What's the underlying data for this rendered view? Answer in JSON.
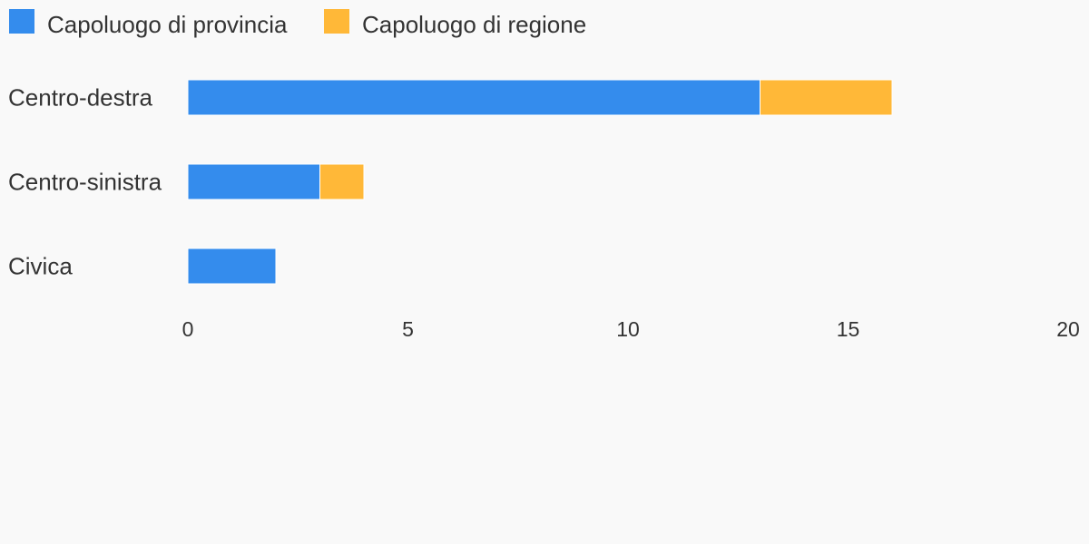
{
  "chart_data": {
    "type": "bar",
    "orientation": "horizontal",
    "stacked": true,
    "categories": [
      "Centro-destra",
      "Centro-sinistra",
      "Civica"
    ],
    "series": [
      {
        "name": "Capoluogo di provincia",
        "color": "#348ced",
        "values": [
          13,
          3,
          2
        ]
      },
      {
        "name": "Capoluogo di regione",
        "color": "#ffb838",
        "values": [
          3,
          1,
          0
        ]
      }
    ],
    "xlim": [
      0,
      20
    ],
    "xticks": [
      "0",
      "5",
      "10",
      "15",
      "20"
    ],
    "legend_position": "top-left",
    "grid": false
  }
}
